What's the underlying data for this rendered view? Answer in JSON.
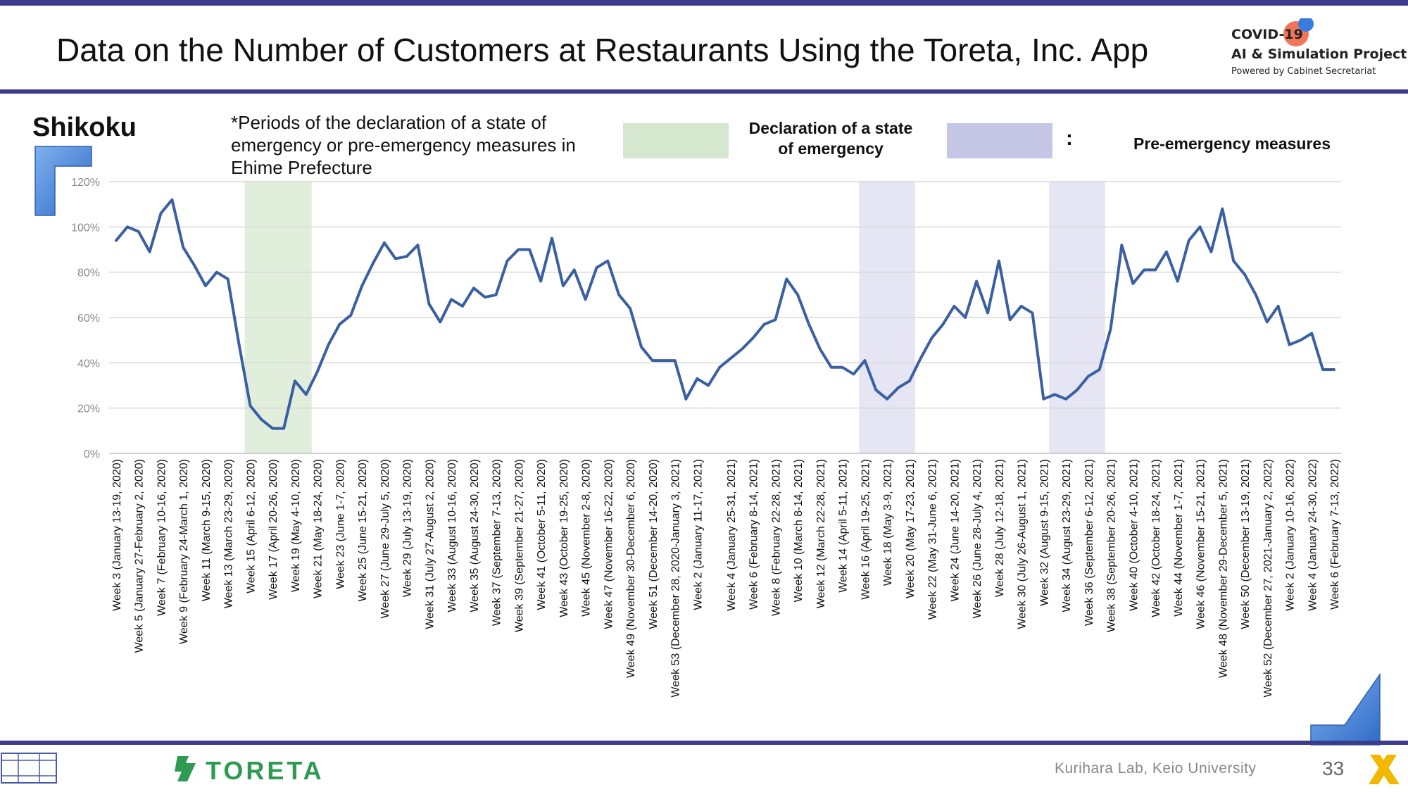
{
  "header": {
    "title": "Data on the Number of Customers at Restaurants Using the Toreta, Inc. App",
    "logo_line1": "COVID-19",
    "logo_line2": "AI & Simulation Project",
    "logo_line3": "Powered by Cabinet Secretariat"
  },
  "region": "Shikoku",
  "note": "*Periods of the declaration of a state of emergency or pre-emergency measures in Ehime Prefecture",
  "legend": {
    "emergency_label": "Declaration of a state of emergency",
    "colon": ":",
    "pre_emergency_label": "Pre-emergency measures",
    "emergency_color": "#d5e8cf",
    "pre_emergency_color": "#c5c5e6"
  },
  "footer": {
    "lab": "Kurihara Lab, Keio University",
    "page_number": "33",
    "brand": "TORETA"
  },
  "colors": {
    "accent_bar": "#3b3d8c",
    "line": "#3a5fa3",
    "deco_blue": "#4a7fd0",
    "brand_green": "#2f9a52"
  },
  "chart_data": {
    "type": "line",
    "y_axis": {
      "min": 0,
      "max": 120,
      "ticks": [
        "0%",
        "20%",
        "40%",
        "60%",
        "80%",
        "100%",
        "120%"
      ],
      "format": "percent"
    },
    "grid": true,
    "x_labels": [
      "Week 3 (January 13-19, 2020)",
      "Week 5 (January 27-February 2, 2020)",
      "Week 7 (February 10-16, 2020)",
      "Week 9 (February 24-March 1, 2020)",
      "Week 11 (March 9-15, 2020)",
      "Week 13 (March 23-29, 2020)",
      "Week 15 (April 6-12, 2020)",
      "Week 17 (April 20-26, 2020)",
      "Week 19 (May 4-10, 2020)",
      "Week 21 (May 18-24, 2020)",
      "Week 23 (June 1-7, 2020)",
      "Week 25 (June 15-21, 2020)",
      "Week 27 (June 29-July 5, 2020)",
      "Week 29 (July 13-19, 2020)",
      "Week 31 (July 27-August 2, 2020)",
      "Week 33 (August 10-16, 2020)",
      "Week 35 (August 24-30, 2020)",
      "Week 37 (September 7-13, 2020)",
      "Week 39 (September 21-27, 2020)",
      "Week 41 (October 5-11, 2020)",
      "Week 43 (October 19-25, 2020)",
      "Week 45 (November 2-8, 2020)",
      "Week 47 (November 16-22, 2020)",
      "Week 49 (November 30-December 6, 2020)",
      "Week 51 (December 14-20, 2020)",
      "Week 53 (December 28, 2020-January 3, 2021)",
      "Week 2 (January 11-17, 2021)",
      "Week 4 (January 25-31, 2021)",
      "Week 6 (February 8-14, 2021)",
      "Week 8 (February 22-28, 2021)",
      "Week 10 (March 8-14, 2021)",
      "Week 12 (March 22-28, 2021)",
      "Week 14 (April 5-11, 2021)",
      "Week 16 (April 19-25, 2021)",
      "Week 18 (May 3-9, 2021)",
      "Week 20 (May 17-23, 2021)",
      "Week 22 (May 31-June 6, 2021)",
      "Week 24 (June 14-20, 2021)",
      "Week 26 (June 28-July 4, 2021)",
      "Week 28 (July 12-18, 2021)",
      "Week 30 (July 26-August 1, 2021)",
      "Week 32 (August 9-15, 2021)",
      "Week 34 (August 23-29, 2021)",
      "Week 36 (September 6-12, 2021)",
      "Week 38 (September 20-26, 2021)",
      "Week 40 (October 4-10, 2021)",
      "Week 42 (October 18-24, 2021)",
      "Week 44 (November 1-7, 2021)",
      "Week 46 (November 15-21, 2021)",
      "Week 48 (November 29-December 5, 2021)",
      "Week 50 (December 13-19, 2021)",
      "Week 52 (December 27, 2021-January 2, 2022)",
      "Week 2 (January 10-16, 2022)",
      "Week 4 (January 24-30, 2022)",
      "Week 6 (February 7-13, 2022)"
    ],
    "series": [
      {
        "values": [
          94,
          100,
          98,
          89,
          106,
          112,
          91,
          83,
          74,
          80,
          77,
          48,
          21,
          15,
          11,
          11,
          32,
          26,
          36,
          48,
          57,
          61,
          74,
          84,
          93,
          86,
          87,
          92,
          66,
          58,
          68,
          65,
          73,
          69,
          70,
          85,
          90,
          90,
          76,
          95,
          74,
          81,
          68,
          82,
          85,
          70,
          64,
          47,
          41,
          41,
          41,
          24,
          33,
          30,
          38,
          42,
          46,
          51,
          57,
          59,
          77,
          70,
          57,
          46,
          38,
          38,
          35,
          41,
          28,
          24,
          29,
          32,
          42,
          51,
          57,
          65,
          60,
          76,
          62,
          85,
          59,
          65,
          62,
          24,
          26,
          24,
          28,
          34,
          37,
          55,
          92,
          75,
          81,
          81,
          89,
          76,
          94,
          100,
          89,
          108,
          85,
          79,
          70,
          58,
          65,
          48,
          50,
          53,
          37,
          37
        ]
      }
    ],
    "shaded_periods": [
      {
        "type": "emergency",
        "from_index": 12,
        "to_index": 17
      },
      {
        "type": "pre-emergency",
        "from_index": 67,
        "to_index": 71
      },
      {
        "type": "pre-emergency",
        "from_index": 84,
        "to_index": 88
      }
    ]
  }
}
